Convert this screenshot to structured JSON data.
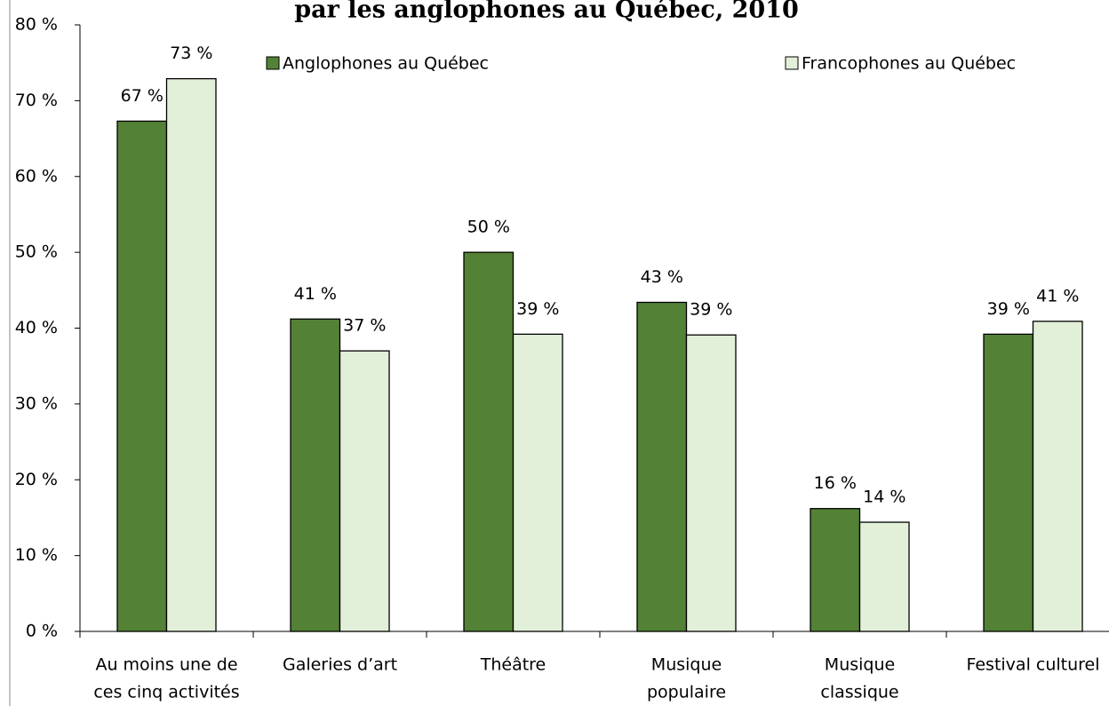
{
  "chart_data": {
    "type": "bar",
    "title": "par les anglophones au Québec, 2010",
    "categories": [
      [
        "Au moins une de",
        "ces cinq activités"
      ],
      [
        "Galeries d’art"
      ],
      [
        "Théâtre"
      ],
      [
        "Musique",
        "populaire"
      ],
      [
        "Musique",
        "classique"
      ],
      [
        "Festival culturel"
      ]
    ],
    "series": [
      {
        "name": "Anglophones au Québec",
        "color": "#538135",
        "values": [
          67.3,
          41.2,
          50.0,
          43.4,
          16.2,
          39.2
        ],
        "value_labels": [
          "67 %",
          "41 %",
          "50 %",
          "43 %",
          "16 %",
          "39 %"
        ]
      },
      {
        "name": "Francophones au Québec",
        "color": "#e2efd9",
        "values": [
          72.9,
          37.0,
          39.2,
          39.1,
          14.4,
          40.9
        ],
        "value_labels": [
          "73 %",
          "37 %",
          "39 %",
          "39 %",
          "14 %",
          "41 %"
        ]
      }
    ],
    "ylim": [
      0,
      80
    ],
    "yticks": [
      {
        "value": 0,
        "label": "0 %"
      },
      {
        "value": 10,
        "label": "10 %"
      },
      {
        "value": 20,
        "label": "20 %"
      },
      {
        "value": 30,
        "label": "30 %"
      },
      {
        "value": 40,
        "label": "40 %"
      },
      {
        "value": 50,
        "label": "50 %"
      },
      {
        "value": 60,
        "label": "60 %"
      },
      {
        "value": 70,
        "label": "70 %"
      },
      {
        "value": 80,
        "label": "80 %"
      }
    ],
    "legend": "top"
  }
}
